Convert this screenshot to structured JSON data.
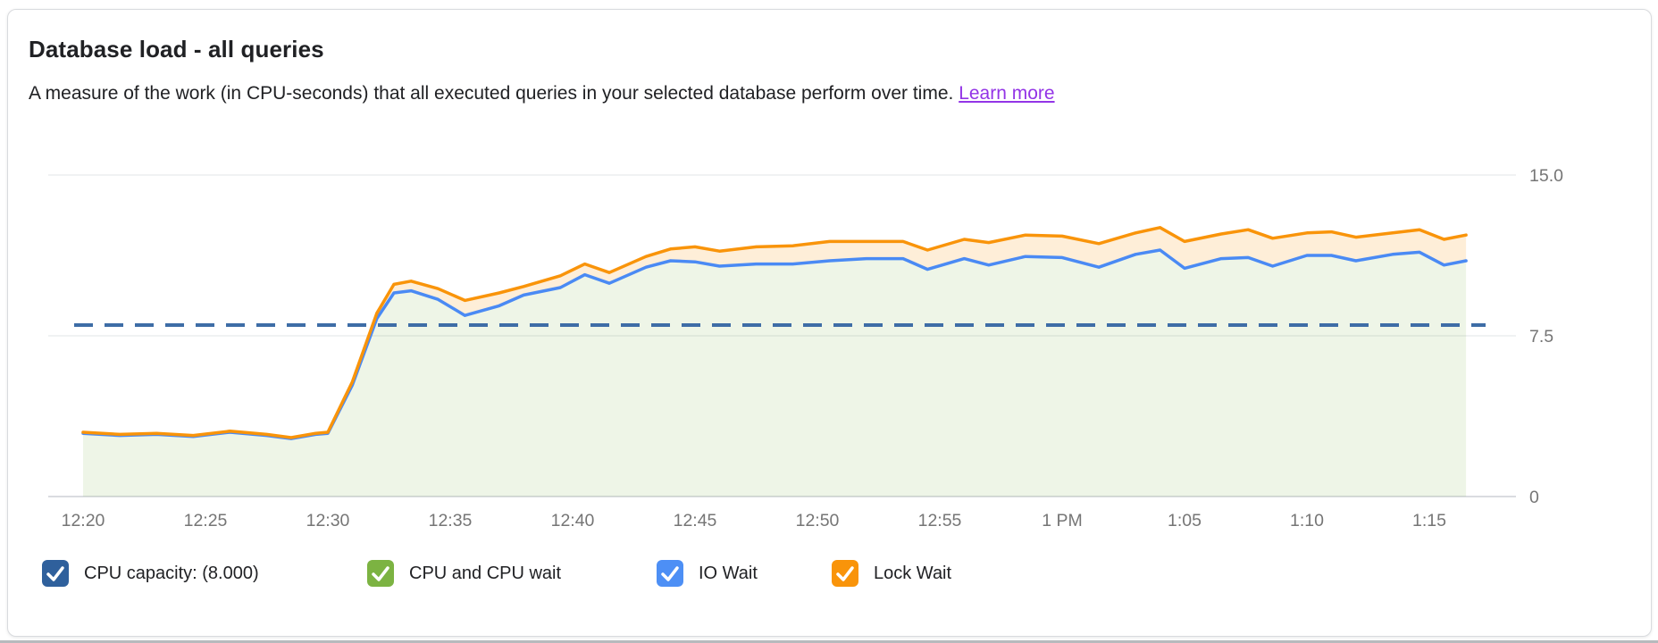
{
  "card": {
    "title": "Database load - all queries",
    "subtitle": "A measure of the work (in CPU-seconds) that all executed queries in your selected database perform over time.",
    "learn_more_label": "Learn more",
    "learn_more_color": "#9334e6"
  },
  "legend": {
    "items": [
      {
        "id": "cpu-capacity",
        "label": "CPU capacity: (8.000)",
        "color": "#2f609c",
        "checked": true
      },
      {
        "id": "cpu-and-cpu-wait",
        "label": "CPU and CPU wait",
        "color": "#7cb342",
        "checked": true
      },
      {
        "id": "io-wait",
        "label": "IO Wait",
        "color": "#4d8ff5",
        "checked": true
      },
      {
        "id": "lock-wait",
        "label": "Lock Wait",
        "color": "#f9940a",
        "checked": true
      }
    ]
  },
  "chart_data": {
    "type": "area",
    "stacked": true,
    "title": "Database load - all queries",
    "ylabel": "",
    "xlabel": "",
    "ylim": [
      0,
      15
    ],
    "grid": "horizontal-only",
    "legend_position": "bottom",
    "y_axis": {
      "side": "right",
      "ticks": [
        0,
        7.5,
        15.0
      ],
      "tick_labels": [
        "0",
        "7.5",
        "15.0"
      ]
    },
    "x_axis": {
      "tick_labels": [
        "12:20",
        "12:25",
        "12:30",
        "12:35",
        "12:40",
        "12:45",
        "12:50",
        "12:55",
        "1 PM",
        "1:05",
        "1:10",
        "1:15"
      ],
      "tick_minutes": [
        0,
        5,
        10,
        15,
        20,
        25,
        30,
        35,
        40,
        45,
        50,
        55
      ]
    },
    "capacity_line": {
      "label": "CPU capacity",
      "value": 8.0,
      "style": "dashed",
      "color": "#3e6da6"
    },
    "x_minutes": [
      0,
      1.5,
      3,
      4.5,
      6,
      7.5,
      8.5,
      9.5,
      10,
      11,
      12,
      12.7,
      13.4,
      14.5,
      15.6,
      17,
      18,
      19.5,
      20.5,
      21.5,
      23,
      24,
      25,
      26,
      27.5,
      29,
      30.5,
      32,
      33.5,
      34.5,
      36,
      37,
      38.5,
      40,
      41.5,
      43,
      44,
      45,
      46.5,
      47.6,
      48.6,
      50,
      51,
      52,
      53.5,
      54.6,
      55.6,
      56.5
    ],
    "series": [
      {
        "name": "CPU and CPU wait",
        "color": "#7cb342",
        "fill": "rgba(124,179,66,0.13)",
        "render": "area filled from 0 up to the IO Wait boundary; its own line is indistinguishable from the IO Wait line in this view"
      },
      {
        "name": "IO Wait",
        "color": "#4a8af4",
        "render": "cumulative stacked boundary line (CPU + CPU wait + IO Wait)",
        "values": [
          2.95,
          2.85,
          2.9,
          2.8,
          3.0,
          2.85,
          2.7,
          2.9,
          2.95,
          5.2,
          8.3,
          9.5,
          9.6,
          9.2,
          8.45,
          8.9,
          9.4,
          9.75,
          10.35,
          9.95,
          10.7,
          11.0,
          10.95,
          10.75,
          10.85,
          10.85,
          11.0,
          11.1,
          11.1,
          10.6,
          11.1,
          10.8,
          11.2,
          11.15,
          10.7,
          11.3,
          11.5,
          10.65,
          11.1,
          11.15,
          10.75,
          11.25,
          11.25,
          11.0,
          11.3,
          11.4,
          10.8,
          11.0
        ]
      },
      {
        "name": "Lock Wait",
        "color": "#f9940a",
        "fill": "rgba(249,148,10,0.16)",
        "render": "cumulative stacked boundary line (total load); band between IO Wait and this line filled",
        "values": [
          3.0,
          2.9,
          2.95,
          2.85,
          3.05,
          2.9,
          2.75,
          2.95,
          3.0,
          5.35,
          8.55,
          9.9,
          10.05,
          9.7,
          9.15,
          9.5,
          9.8,
          10.3,
          10.85,
          10.45,
          11.2,
          11.55,
          11.65,
          11.45,
          11.65,
          11.7,
          11.9,
          11.9,
          11.9,
          11.5,
          12.0,
          11.85,
          12.2,
          12.15,
          11.8,
          12.3,
          12.55,
          11.9,
          12.25,
          12.45,
          12.05,
          12.3,
          12.35,
          12.1,
          12.3,
          12.45,
          12.0,
          12.2
        ]
      }
    ]
  }
}
